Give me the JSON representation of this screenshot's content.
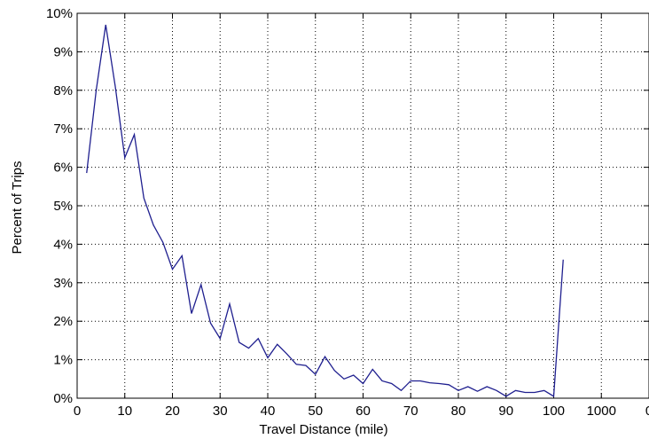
{
  "chart_data": {
    "type": "line",
    "xlabel": "Travel Distance (mile)",
    "ylabel": "Percent of Trips",
    "x_tick_labels": [
      "0",
      "10",
      "20",
      "30",
      "40",
      "50",
      "60",
      "70",
      "80",
      "90",
      "100",
      "1000",
      "0"
    ],
    "y_tick_labels": [
      "0%",
      "1%",
      "2%",
      "3%",
      "4%",
      "5%",
      "6%",
      "7%",
      "8%",
      "9%",
      "10%"
    ],
    "xlim": [
      0,
      120
    ],
    "ylim": [
      0,
      10
    ],
    "grid": true,
    "line_color": "#1f1f8f",
    "series": [
      {
        "x": [
          2,
          4,
          6,
          8,
          10,
          12,
          14,
          16,
          18,
          20,
          22,
          24,
          26,
          28,
          30,
          32,
          34,
          36,
          38,
          40,
          42,
          44,
          46,
          48,
          50,
          52,
          54,
          56,
          58,
          60,
          62,
          64,
          66,
          68,
          70,
          72,
          74,
          76,
          78,
          80,
          82,
          84,
          86,
          88,
          90,
          92,
          94,
          96,
          98,
          100,
          102
        ],
        "values": [
          5.85,
          8.0,
          9.7,
          8.1,
          6.25,
          6.85,
          5.2,
          4.5,
          4.05,
          3.35,
          3.7,
          2.2,
          2.95,
          1.95,
          1.55,
          2.45,
          1.45,
          1.3,
          1.55,
          1.05,
          1.4,
          1.15,
          0.88,
          0.85,
          0.62,
          1.08,
          0.72,
          0.5,
          0.6,
          0.38,
          0.75,
          0.45,
          0.38,
          0.2,
          0.45,
          0.45,
          0.4,
          0.38,
          0.35,
          0.2,
          0.3,
          0.18,
          0.3,
          0.2,
          0.05,
          0.2,
          0.15,
          0.15,
          0.2,
          0.05,
          3.6
        ]
      }
    ]
  }
}
